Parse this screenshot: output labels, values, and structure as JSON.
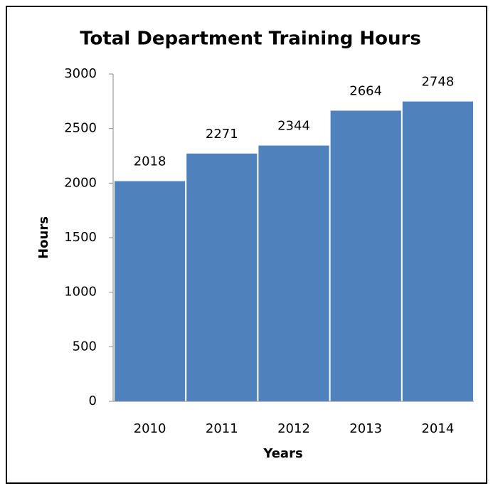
{
  "chart_data": {
    "type": "bar",
    "title": "Total Department Training Hours",
    "x_label": "Years",
    "y_label": "Hours",
    "categories": [
      "2010",
      "2011",
      "2012",
      "2013",
      "2014"
    ],
    "values": [
      2018,
      2271,
      2344,
      2664,
      2748
    ],
    "color": "#4f81bd",
    "ylim": [
      0,
      3000
    ],
    "yticks": [
      0,
      500,
      1000,
      1500,
      2000,
      2500,
      3000
    ],
    "grid": false
  }
}
